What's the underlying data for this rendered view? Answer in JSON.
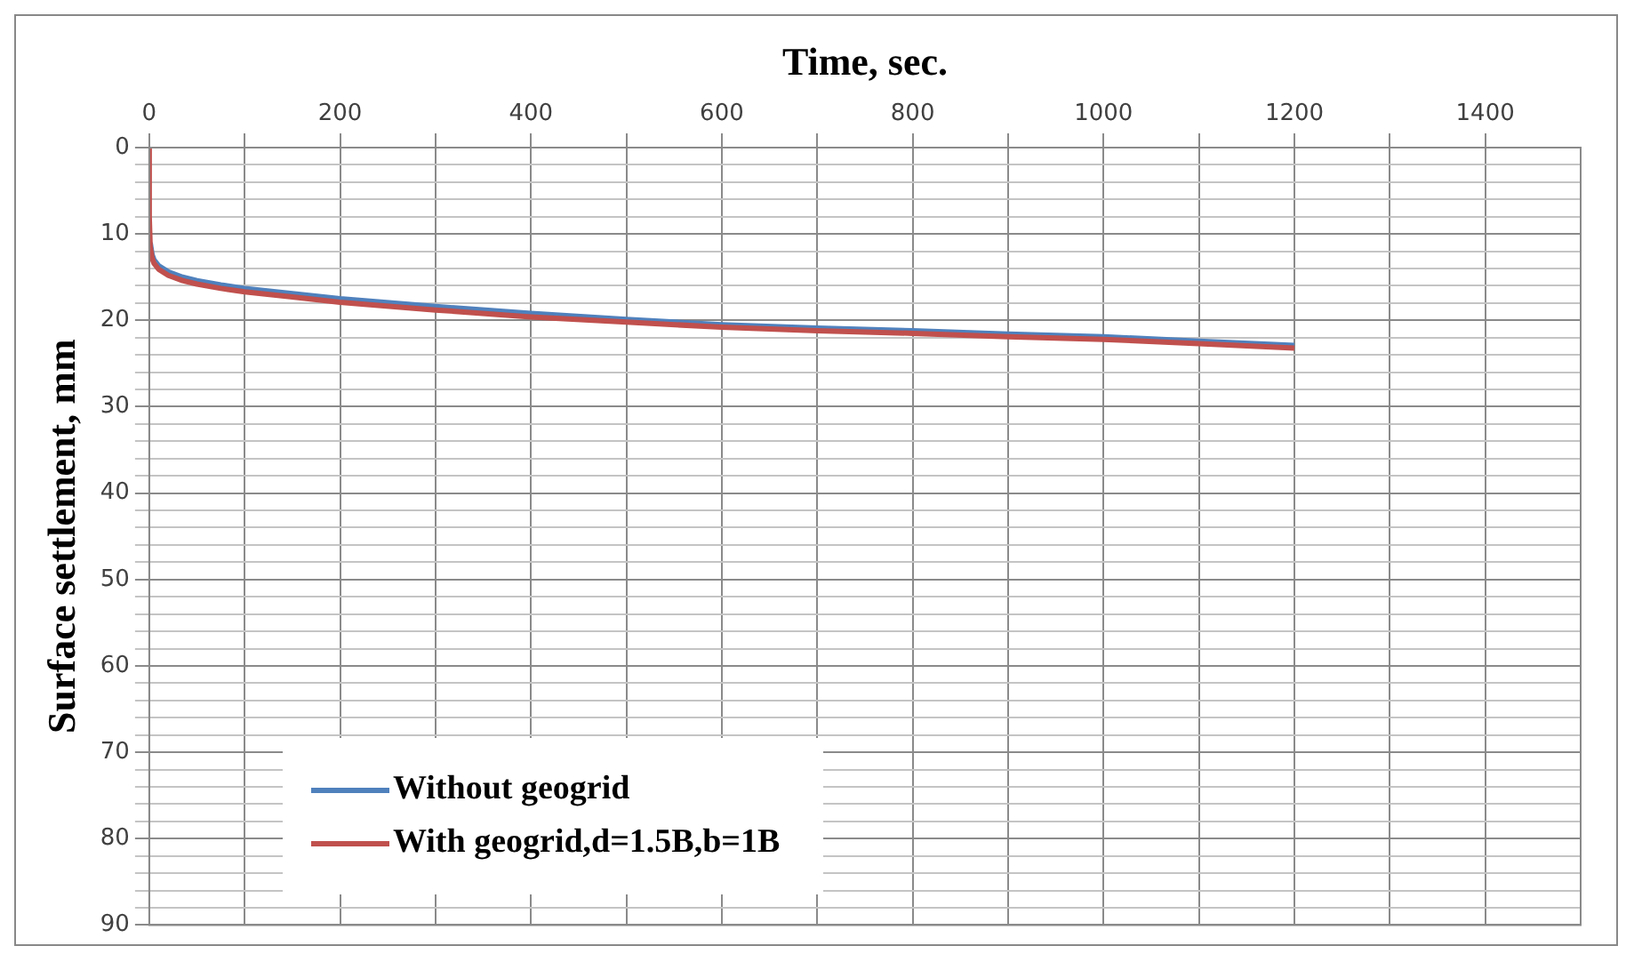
{
  "chart_data": {
    "type": "line",
    "xlabel": "Time, sec.",
    "ylabel": "Surface settlement, mm",
    "x": [
      0,
      0,
      1,
      3,
      5,
      10,
      20,
      35,
      50,
      75,
      100,
      150,
      200,
      300,
      400,
      500,
      600,
      700,
      800,
      900,
      1000,
      1100,
      1200
    ],
    "series": [
      {
        "name": "Without geogrid",
        "color": "#4f81bd",
        "values": [
          null,
          null,
          11,
          12.4,
          13,
          13.7,
          14.4,
          15,
          15.4,
          15.9,
          16.3,
          16.9,
          17.5,
          18.4,
          19.2,
          19.9,
          20.5,
          20.9,
          21.2,
          21.6,
          21.9,
          22.4,
          22.9
        ]
      },
      {
        "name": "With geogrid,d=1.5B,b=1B",
        "color": "#c0504d",
        "values": [
          0,
          8,
          11.5,
          12.8,
          13.4,
          14.1,
          14.8,
          15.4,
          15.8,
          16.3,
          16.7,
          17.3,
          17.9,
          18.8,
          19.6,
          20.2,
          20.8,
          21.2,
          21.5,
          21.9,
          22.2,
          22.7,
          23.2
        ]
      }
    ],
    "xlim": [
      0,
      1500
    ],
    "xticks": [
      0,
      {
        "value": 100,
        "label": null
      },
      200,
      {
        "value": 300,
        "label": null
      },
      400,
      {
        "value": 500,
        "label": null
      },
      600,
      {
        "value": 700,
        "label": null
      },
      800,
      {
        "value": 900,
        "label": null
      },
      1000,
      {
        "value": 1100,
        "label": null
      },
      1200,
      {
        "value": 1300,
        "label": null
      },
      1400
    ],
    "ylim": [
      90,
      0
    ],
    "yticks": [
      0,
      {
        "value": 2,
        "label": null
      },
      {
        "value": 4,
        "label": null
      },
      {
        "value": 6,
        "label": null
      },
      {
        "value": 8,
        "label": null
      },
      10,
      {
        "value": 12,
        "label": null
      },
      {
        "value": 14,
        "label": null
      },
      {
        "value": 16,
        "label": null
      },
      {
        "value": 18,
        "label": null
      },
      20,
      {
        "value": 22,
        "label": null
      },
      {
        "value": 24,
        "label": null
      },
      {
        "value": 26,
        "label": null
      },
      {
        "value": 28,
        "label": null
      },
      30,
      {
        "value": 32,
        "label": null
      },
      {
        "value": 34,
        "label": null
      },
      {
        "value": 36,
        "label": null
      },
      {
        "value": 38,
        "label": null
      },
      40,
      {
        "value": 42,
        "label": null
      },
      {
        "value": 44,
        "label": null
      },
      {
        "value": 46,
        "label": null
      },
      {
        "value": 48,
        "label": null
      },
      50,
      {
        "value": 52,
        "label": null
      },
      {
        "value": 54,
        "label": null
      },
      {
        "value": 56,
        "label": null
      },
      {
        "value": 58,
        "label": null
      },
      60,
      {
        "value": 62,
        "label": null
      },
      {
        "value": 64,
        "label": null
      },
      {
        "value": 66,
        "label": null
      },
      {
        "value": 68,
        "label": null
      },
      70,
      {
        "value": 72,
        "label": null
      },
      {
        "value": 74,
        "label": null
      },
      {
        "value": 76,
        "label": null
      },
      {
        "value": 78,
        "label": null
      },
      80,
      {
        "value": 82,
        "label": null
      },
      {
        "value": 84,
        "label": null
      },
      {
        "value": 86,
        "label": null
      },
      {
        "value": 88,
        "label": null
      },
      90
    ],
    "grid": true,
    "legend": "bottom left",
    "marker": "none",
    "line_style": "solid"
  }
}
